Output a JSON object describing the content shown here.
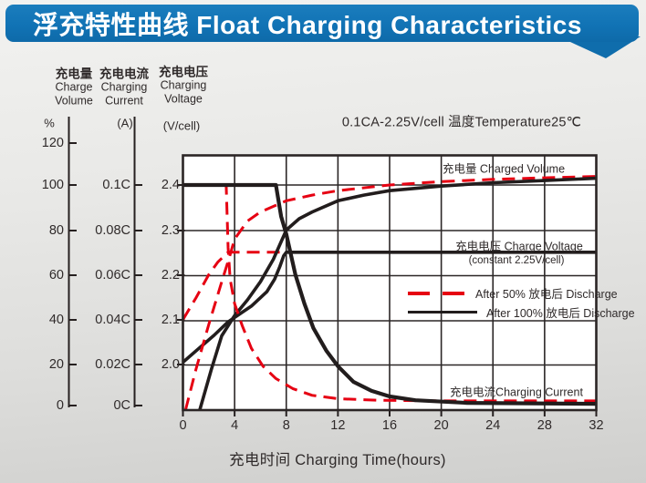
{
  "header": {
    "title": "浮充特性曲线 Float Charging Characteristics"
  },
  "axes": {
    "volume": {
      "cn": "充电量",
      "en1": "Charge",
      "en2": "Volume",
      "unit": "%",
      "ticks": [
        "120",
        "100",
        "80",
        "60",
        "40",
        "20",
        "0"
      ]
    },
    "current": {
      "cn": "充电电流",
      "en1": "Charging",
      "en2": "Current",
      "unit": "(A)",
      "ticks": [
        "0.1C",
        "0.08C",
        "0.06C",
        "0.04C",
        "0.02C",
        "0C"
      ]
    },
    "voltage": {
      "cn": "充电电压",
      "en1": "Charging",
      "en2": "Voltage",
      "unit": "(V/cell)",
      "ticks": [
        "2.4",
        "2.3",
        "2.2",
        "2.1",
        "2.0"
      ]
    },
    "x": {
      "label": "充电时间 Charging Time(hours)",
      "ticks": [
        "0",
        "4",
        "8",
        "12",
        "16",
        "20",
        "24",
        "28",
        "32"
      ]
    }
  },
  "annotations": {
    "condition": "0.1CA-2.25V/cell  温度Temperature25℃",
    "volume_label": "充电量 Charged Volume",
    "voltage_label": "充电电压 Charge Voltage",
    "voltage_sub": "(constant 2.25V/cell)",
    "current_label": "充电电流Charging Current"
  },
  "legend": [
    {
      "style": "dashed-red",
      "label": "After 50%  放电后 Discharge"
    },
    {
      "style": "solid-black",
      "label": "After 100%  放电后 Discharge"
    }
  ],
  "colors": {
    "accent_blue": "#1173b5",
    "curve_red": "#e60012",
    "curve_black": "#221d1d"
  },
  "chart_data": {
    "type": "line",
    "title": "浮充特性曲线 Float Charging Characteristics",
    "condition": "0.1CA-2.25V/cell, Temperature 25°C",
    "xlabel": "Charging Time (hours)",
    "x_range": [
      0,
      32
    ],
    "x_gridline_step": 4,
    "y_axes": {
      "charge_volume_pct": {
        "ticks": [
          120,
          100,
          80,
          60,
          40,
          20,
          0
        ]
      },
      "charging_current_CA": {
        "ticks": [
          0.1,
          0.08,
          0.06,
          0.04,
          0.02,
          0
        ]
      },
      "charging_voltage_V_per_cell": {
        "ticks": [
          2.4,
          2.3,
          2.2,
          2.1,
          2.0
        ]
      }
    },
    "series": [
      {
        "name": "charge-volume-after-50%-discharge",
        "axis": "volume",
        "style": "red-dashed",
        "points": [
          [
            0.2,
            0
          ],
          [
            1,
            18
          ],
          [
            2,
            38
          ],
          [
            3,
            57
          ],
          [
            3.6,
            68
          ],
          [
            4,
            76
          ],
          [
            5,
            84
          ],
          [
            6,
            88
          ],
          [
            8,
            93
          ],
          [
            10,
            95.5
          ],
          [
            12,
            97.5
          ],
          [
            16,
            100
          ],
          [
            20,
            101.5
          ],
          [
            24,
            102.5
          ],
          [
            28,
            103.2
          ],
          [
            32,
            103.8
          ]
        ]
      },
      {
        "name": "charge-volume-after-100%-discharge",
        "axis": "volume",
        "style": "black-solid",
        "points": [
          [
            1.3,
            0
          ],
          [
            2.2,
            18
          ],
          [
            3,
            33
          ],
          [
            4,
            42
          ],
          [
            5,
            49
          ],
          [
            6,
            57
          ],
          [
            7,
            67
          ],
          [
            8,
            80
          ],
          [
            9,
            85
          ],
          [
            10,
            88
          ],
          [
            12,
            93
          ],
          [
            14,
            95.5
          ],
          [
            16,
            97.5
          ],
          [
            20,
            99.5
          ],
          [
            24,
            101
          ],
          [
            28,
            102
          ],
          [
            32,
            103
          ]
        ]
      },
      {
        "name": "charge-voltage-after-50%-discharge",
        "axis": "voltage",
        "style": "red-dashed",
        "points": [
          [
            0,
            2.1
          ],
          [
            1,
            2.148
          ],
          [
            2,
            2.2
          ],
          [
            2.7,
            2.228
          ],
          [
            3.5,
            2.25
          ],
          [
            8,
            2.25
          ]
        ]
      },
      {
        "name": "charge-voltage-after-100%-discharge",
        "axis": "voltage",
        "style": "black-solid",
        "points": [
          [
            0,
            2.005
          ],
          [
            1.2,
            2.035
          ],
          [
            2.4,
            2.065
          ],
          [
            3.5,
            2.095
          ],
          [
            5.3,
            2.13
          ],
          [
            6.5,
            2.162
          ],
          [
            7.1,
            2.19
          ],
          [
            7.5,
            2.218
          ],
          [
            7.8,
            2.242
          ],
          [
            8,
            2.25
          ],
          [
            32,
            2.25
          ]
        ]
      },
      {
        "name": "charging-current-after-50%-discharge",
        "axis": "current",
        "style": "red-dashed",
        "points": [
          [
            0,
            0.1
          ],
          [
            3.35,
            0.1
          ],
          [
            3.5,
            0.072
          ],
          [
            3.65,
            0.058
          ],
          [
            4,
            0.047
          ],
          [
            4.6,
            0.037
          ],
          [
            5.3,
            0.027
          ],
          [
            6.2,
            0.019
          ],
          [
            7.2,
            0.0135
          ],
          [
            8.5,
            0.009
          ],
          [
            10,
            0.006
          ],
          [
            12,
            0.0045
          ],
          [
            15,
            0.0038
          ],
          [
            20,
            0.0035
          ],
          [
            32,
            0.0035
          ]
        ]
      },
      {
        "name": "charging-current-after-100%-discharge",
        "axis": "current",
        "style": "black-solid",
        "points": [
          [
            0,
            0.1
          ],
          [
            7.2,
            0.1
          ],
          [
            7.6,
            0.086
          ],
          [
            8,
            0.078
          ],
          [
            8.7,
            0.06
          ],
          [
            9.4,
            0.047
          ],
          [
            10.1,
            0.036
          ],
          [
            11.1,
            0.026
          ],
          [
            12,
            0.019
          ],
          [
            13.2,
            0.012
          ],
          [
            14.6,
            0.008
          ],
          [
            16,
            0.0055
          ],
          [
            18,
            0.0038
          ],
          [
            22,
            0.0026
          ],
          [
            32,
            0.0022
          ]
        ]
      }
    ],
    "legend_position": "middle-right-inside"
  }
}
